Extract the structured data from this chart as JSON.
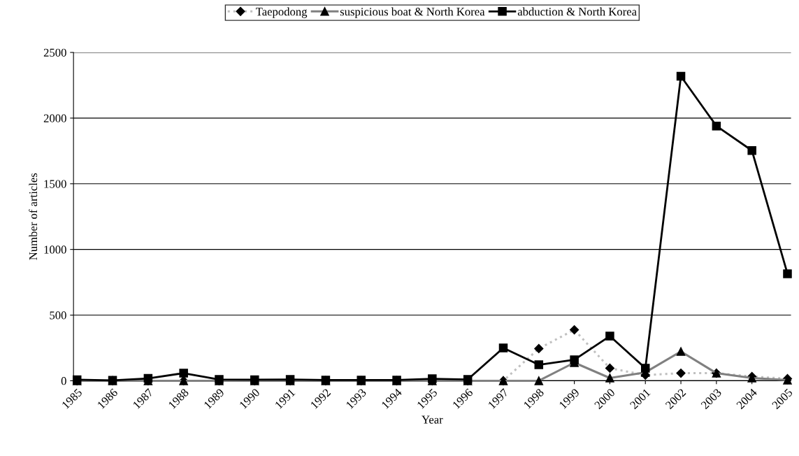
{
  "chart_data": {
    "type": "line",
    "xlabel": "Year",
    "ylabel": "Number of articles",
    "categories": [
      "1985",
      "1986",
      "1987",
      "1988",
      "1989",
      "1990",
      "1991",
      "1992",
      "1993",
      "1994",
      "1995",
      "1996",
      "1997",
      "1998",
      "1999",
      "2000",
      "2001",
      "2002",
      "2003",
      "2004",
      "2005"
    ],
    "series": [
      {
        "name": "Taepodong",
        "color": "#c0c0c0",
        "marker": "diamond",
        "line_style": "dotted",
        "values": [
          0,
          0,
          0,
          0,
          0,
          0,
          0,
          0,
          0,
          0,
          0,
          0,
          0,
          245,
          388,
          96,
          43,
          58,
          58,
          32,
          16
        ]
      },
      {
        "name": "suspicious boat & North Korea",
        "color": "#808080",
        "marker": "triangle",
        "line_style": "solid",
        "values": [
          0,
          0,
          0,
          0,
          0,
          0,
          0,
          0,
          0,
          0,
          0,
          0,
          0,
          0,
          138,
          21,
          64,
          223,
          58,
          21,
          5
        ]
      },
      {
        "name": "abduction & North Korea",
        "color": "#000000",
        "marker": "square",
        "line_style": "solid",
        "values": [
          8,
          3,
          18,
          58,
          10,
          8,
          10,
          5,
          5,
          5,
          15,
          10,
          250,
          122,
          160,
          340,
          96,
          2319,
          1940,
          1753,
          815
        ]
      }
    ],
    "ylim": [
      0,
      2500
    ],
    "yticks": [
      0,
      500,
      1000,
      1500,
      2000,
      2500
    ],
    "grid": "y",
    "legend": "top"
  }
}
